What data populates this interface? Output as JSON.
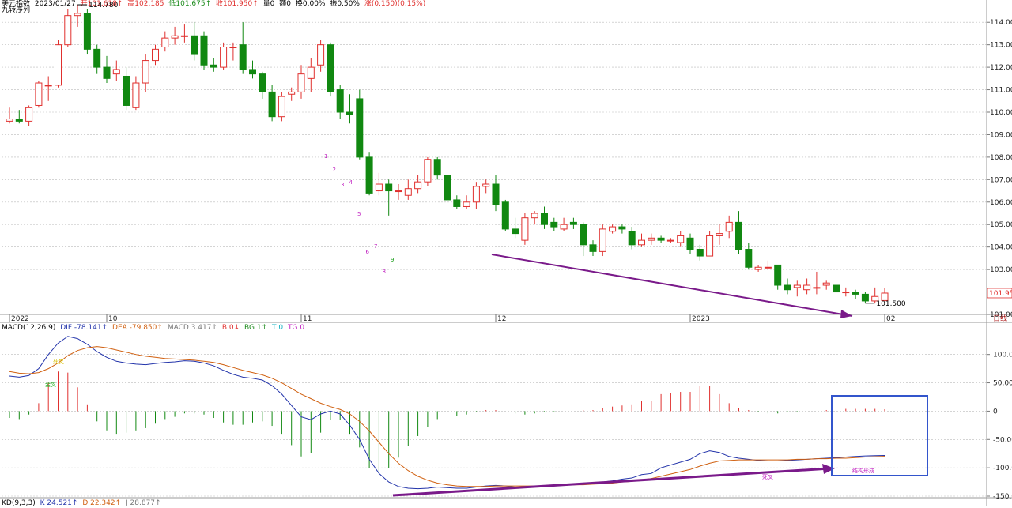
{
  "header": {
    "name": "美元指数",
    "date": "2023/01/27",
    "open": "开101.618↑",
    "high": "高102.185",
    "low": "低101.675↑",
    "close": "收101.950↑",
    "vol": "量0",
    "amount": "额0",
    "turnover": "换0.00%",
    "amplitude": "振0.50%",
    "change": "涨(0.150)(0.15%)",
    "indicator": "九转序列"
  },
  "macd_header": {
    "name": "MACD(12,26,9)",
    "dif": "DIF -78.141↑",
    "dea": "DEA -79.850↑",
    "macd": "MACD 3.417↑",
    "b": "B 0↓",
    "bg": "BG 1↑",
    "t": "T 0",
    "tg": "TG 0"
  },
  "kd_header": {
    "name": "KD(9,3,3)",
    "k": "K 24.521↑",
    "d": "D 22.342↑",
    "j": "J 28.877↑"
  },
  "annotations": {
    "max_label": "114.780",
    "min_label": "101.500",
    "last_price": "101.950",
    "period": "日线",
    "label_a": "死叉",
    "label_b": "金叉",
    "label_c": "死叉",
    "label_d": "结构形成"
  },
  "colors": {
    "up": "#e0302e",
    "down": "#118811",
    "dif": "#2233aa",
    "dea": "#d06010",
    "trend": "#7a1a8a",
    "box": "#3355cc",
    "nine_up": "#c020c0",
    "nine_dn": "#20a020"
  },
  "chart_data": [
    {
      "type": "candlestick",
      "title": "美元指数",
      "ylim": [
        101.0,
        114.5
      ],
      "y_ticks": [
        "114.000",
        "113.000",
        "112.000",
        "111.000",
        "110.000",
        "109.000",
        "108.000",
        "107.000",
        "106.000",
        "105.000",
        "104.000",
        "103.000",
        "102.000",
        "101.000"
      ],
      "x_labels": [
        {
          "index": 0,
          "label": "2022"
        },
        {
          "index": 10,
          "label": "10"
        },
        {
          "index": 30,
          "label": "11"
        },
        {
          "index": 50,
          "label": "12"
        },
        {
          "index": 70,
          "label": "2023"
        },
        {
          "index": 90,
          "label": "02"
        }
      ],
      "candles": [
        [
          109.6,
          109.7,
          110.2,
          109.5
        ],
        [
          109.7,
          109.6,
          110.1,
          109.5
        ],
        [
          109.6,
          110.2,
          110.3,
          109.4
        ],
        [
          110.3,
          111.3,
          111.4,
          110.2
        ],
        [
          111.2,
          111.2,
          111.6,
          110.5
        ],
        [
          111.2,
          113.0,
          113.2,
          111.1
        ],
        [
          113.0,
          114.3,
          114.6,
          112.9
        ],
        [
          114.3,
          114.4,
          114.78,
          113.8
        ],
        [
          114.4,
          112.8,
          114.6,
          112.6
        ],
        [
          112.8,
          112.0,
          113.0,
          111.7
        ],
        [
          112.0,
          111.5,
          112.5,
          111.3
        ],
        [
          111.7,
          111.9,
          112.3,
          111.4
        ],
        [
          111.6,
          110.3,
          112.0,
          110.1
        ],
        [
          110.2,
          111.3,
          111.6,
          110.1
        ],
        [
          111.3,
          112.3,
          112.6,
          110.9
        ],
        [
          112.3,
          112.8,
          113.0,
          112.1
        ],
        [
          112.9,
          113.3,
          113.6,
          112.7
        ],
        [
          113.3,
          113.4,
          113.8,
          113.0
        ],
        [
          113.4,
          113.4,
          113.9,
          113.1
        ],
        [
          113.4,
          112.6,
          114.0,
          112.3
        ],
        [
          113.4,
          112.1,
          113.6,
          111.9
        ],
        [
          112.1,
          112.0,
          112.4,
          111.8
        ],
        [
          112.0,
          112.9,
          113.1,
          111.9
        ],
        [
          112.9,
          112.9,
          113.1,
          112.3
        ],
        [
          113.0,
          111.9,
          114.0,
          111.7
        ],
        [
          111.9,
          111.7,
          112.3,
          111.5
        ],
        [
          111.7,
          110.9,
          111.8,
          110.6
        ],
        [
          110.9,
          109.8,
          111.2,
          109.6
        ],
        [
          109.8,
          110.7,
          110.9,
          109.6
        ],
        [
          110.8,
          110.9,
          111.1,
          110.5
        ],
        [
          110.9,
          111.7,
          112.1,
          110.6
        ],
        [
          111.5,
          112.0,
          112.4,
          110.9
        ],
        [
          112.1,
          113.0,
          113.2,
          111.8
        ],
        [
          113.0,
          110.9,
          113.1,
          110.7
        ],
        [
          111.0,
          110.0,
          111.2,
          109.7
        ],
        [
          110.0,
          109.9,
          110.8,
          109.5
        ],
        [
          110.6,
          108.0,
          111.0,
          107.9
        ],
        [
          108.0,
          106.4,
          108.2,
          106.3
        ],
        [
          106.5,
          106.8,
          107.3,
          106.3
        ],
        [
          106.8,
          106.5,
          107.0,
          105.4
        ],
        [
          106.5,
          106.5,
          106.8,
          106.1
        ],
        [
          106.3,
          106.6,
          107.0,
          106.1
        ],
        [
          106.6,
          106.9,
          107.2,
          106.4
        ],
        [
          106.9,
          107.9,
          108.0,
          106.7
        ],
        [
          107.9,
          107.2,
          108.0,
          107.0
        ],
        [
          107.2,
          106.1,
          107.3,
          106.0
        ],
        [
          106.1,
          105.8,
          106.3,
          105.7
        ],
        [
          105.8,
          106.0,
          106.3,
          105.7
        ],
        [
          106.0,
          106.7,
          106.9,
          105.7
        ],
        [
          106.7,
          106.8,
          107.0,
          106.4
        ],
        [
          106.8,
          105.9,
          107.2,
          105.6
        ],
        [
          106.0,
          104.8,
          106.1,
          104.7
        ],
        [
          104.8,
          104.6,
          105.3,
          104.4
        ],
        [
          104.3,
          105.3,
          105.5,
          104.1
        ],
        [
          105.3,
          105.5,
          105.6,
          105.0
        ],
        [
          105.5,
          105.0,
          105.8,
          104.8
        ],
        [
          105.1,
          104.9,
          105.3,
          104.7
        ],
        [
          104.8,
          105.0,
          105.3,
          104.7
        ],
        [
          105.1,
          105.0,
          105.3,
          104.8
        ],
        [
          105.0,
          104.1,
          105.1,
          103.6
        ],
        [
          104.1,
          103.8,
          104.3,
          103.6
        ],
        [
          103.8,
          104.8,
          105.0,
          103.6
        ],
        [
          104.7,
          104.9,
          105.0,
          104.6
        ],
        [
          104.9,
          104.8,
          105.0,
          104.6
        ],
        [
          104.7,
          104.1,
          104.9,
          103.9
        ],
        [
          104.1,
          104.3,
          104.6,
          104.0
        ],
        [
          104.3,
          104.4,
          104.6,
          104.1
        ],
        [
          104.4,
          104.3,
          104.5,
          104.2
        ],
        [
          104.3,
          104.3,
          104.4,
          104.2
        ],
        [
          104.2,
          104.5,
          104.7,
          104.0
        ],
        [
          104.4,
          103.9,
          104.6,
          103.7
        ],
        [
          103.9,
          103.6,
          104.1,
          103.4
        ],
        [
          103.6,
          104.5,
          104.7,
          103.6
        ],
        [
          104.5,
          104.6,
          105.0,
          104.1
        ],
        [
          104.7,
          105.1,
          105.4,
          104.4
        ],
        [
          105.1,
          103.9,
          105.6,
          103.7
        ],
        [
          103.9,
          103.1,
          104.2,
          103.0
        ],
        [
          103.0,
          103.1,
          103.2,
          102.9
        ],
        [
          103.1,
          103.1,
          103.4,
          103.0
        ],
        [
          103.2,
          102.3,
          103.2,
          102.1
        ],
        [
          102.3,
          102.1,
          102.6,
          101.9
        ],
        [
          102.2,
          102.3,
          102.5,
          101.8
        ],
        [
          102.1,
          102.3,
          102.6,
          101.9
        ],
        [
          102.2,
          102.2,
          102.9,
          101.9
        ],
        [
          102.3,
          102.4,
          102.5,
          102.1
        ],
        [
          102.3,
          102.0,
          102.4,
          101.8
        ],
        [
          102.0,
          102.0,
          102.2,
          101.8
        ],
        [
          102.0,
          101.9,
          102.1,
          101.7
        ],
        [
          101.9,
          101.6,
          102.0,
          101.5
        ],
        [
          101.6,
          101.8,
          102.2,
          101.5
        ],
        [
          101.618,
          101.95,
          102.185,
          101.675
        ]
      ],
      "nine_turn": [
        {
          "index": 35,
          "label": "1",
          "color": "up"
        },
        {
          "index": 36,
          "label": "2",
          "color": "up"
        },
        {
          "index": 37,
          "label": "3",
          "color": "up"
        },
        {
          "index": 38,
          "label": "4",
          "color": "up"
        },
        {
          "index": 39,
          "label": "5",
          "color": "up"
        },
        {
          "index": 40,
          "label": "6",
          "color": "up"
        },
        {
          "index": 41,
          "label": "7",
          "color": "up"
        },
        {
          "index": 42,
          "label": "8",
          "color": "up"
        },
        {
          "index": 43,
          "label": "9",
          "color": "dn"
        }
      ]
    },
    {
      "type": "line+bar",
      "title": "MACD(12,26,9)",
      "ylim": [
        -150,
        140
      ],
      "y_ticks": [
        "100.00",
        "50.00",
        "0",
        "-50.00",
        "-100.00",
        "-150.00"
      ],
      "series": [
        {
          "name": "DIF",
          "values": [
            62,
            60,
            63,
            75,
            100,
            120,
            132,
            128,
            118,
            105,
            95,
            88,
            85,
            83,
            82,
            84,
            86,
            87,
            89,
            88,
            85,
            80,
            72,
            65,
            60,
            58,
            55,
            45,
            30,
            10,
            -10,
            -15,
            -5,
            0,
            -5,
            -25,
            -50,
            -85,
            -110,
            -125,
            -133,
            -136,
            -137,
            -136,
            -134,
            -135,
            -136,
            -136,
            -134,
            -132,
            -131,
            -132,
            -134,
            -135,
            -134,
            -133,
            -132,
            -131,
            -130,
            -129,
            -128,
            -125,
            -123,
            -120,
            -118,
            -112,
            -110,
            -100,
            -95,
            -90,
            -85,
            -75,
            -70,
            -73,
            -80,
            -83,
            -85,
            -87,
            -88,
            -88,
            -87,
            -86,
            -85,
            -84,
            -83,
            -82,
            -81,
            -80,
            -79,
            -78.5,
            -78.141
          ]
        },
        {
          "name": "DEA",
          "values": [
            70,
            67,
            66,
            68,
            75,
            85,
            98,
            107,
            112,
            114,
            112,
            108,
            104,
            100,
            97,
            95,
            93,
            92,
            91,
            90,
            88,
            86,
            82,
            77,
            72,
            68,
            64,
            58,
            50,
            40,
            30,
            22,
            14,
            8,
            3,
            -5,
            -18,
            -35,
            -55,
            -75,
            -92,
            -105,
            -115,
            -122,
            -127,
            -130,
            -132,
            -133,
            -133,
            -133,
            -132,
            -132,
            -132,
            -132,
            -132,
            -132,
            -131,
            -131,
            -130,
            -130,
            -129,
            -128,
            -127,
            -125,
            -124,
            -121,
            -119,
            -115,
            -111,
            -107,
            -103,
            -97,
            -92,
            -88,
            -87,
            -86,
            -86,
            -86,
            -86,
            -86,
            -86,
            -85,
            -85,
            -84,
            -84,
            -83,
            -83,
            -82,
            -81,
            -80.5,
            -79.85
          ]
        },
        {
          "name": "MACD",
          "values": [
            -12,
            -14,
            -6,
            14,
            50,
            70,
            68,
            42,
            12,
            -18,
            -34,
            -40,
            -38,
            -34,
            -30,
            -22,
            -14,
            -10,
            -4,
            -4,
            -6,
            -12,
            -20,
            -24,
            -24,
            -20,
            -18,
            -26,
            -40,
            -60,
            -80,
            -74,
            -38,
            -16,
            -16,
            -40,
            -64,
            -100,
            -110,
            -100,
            -82,
            -62,
            -44,
            -28,
            -14,
            -10,
            -8,
            -6,
            -2,
            2,
            2,
            0,
            -4,
            -6,
            -4,
            -2,
            -2,
            0,
            0,
            2,
            2,
            6,
            8,
            10,
            12,
            18,
            18,
            30,
            32,
            34,
            34,
            44,
            44,
            30,
            14,
            6,
            2,
            -2,
            -4,
            -4,
            -2,
            -2,
            0,
            0,
            2,
            2,
            4,
            4,
            4,
            4,
            3.417
          ]
        }
      ]
    }
  ]
}
